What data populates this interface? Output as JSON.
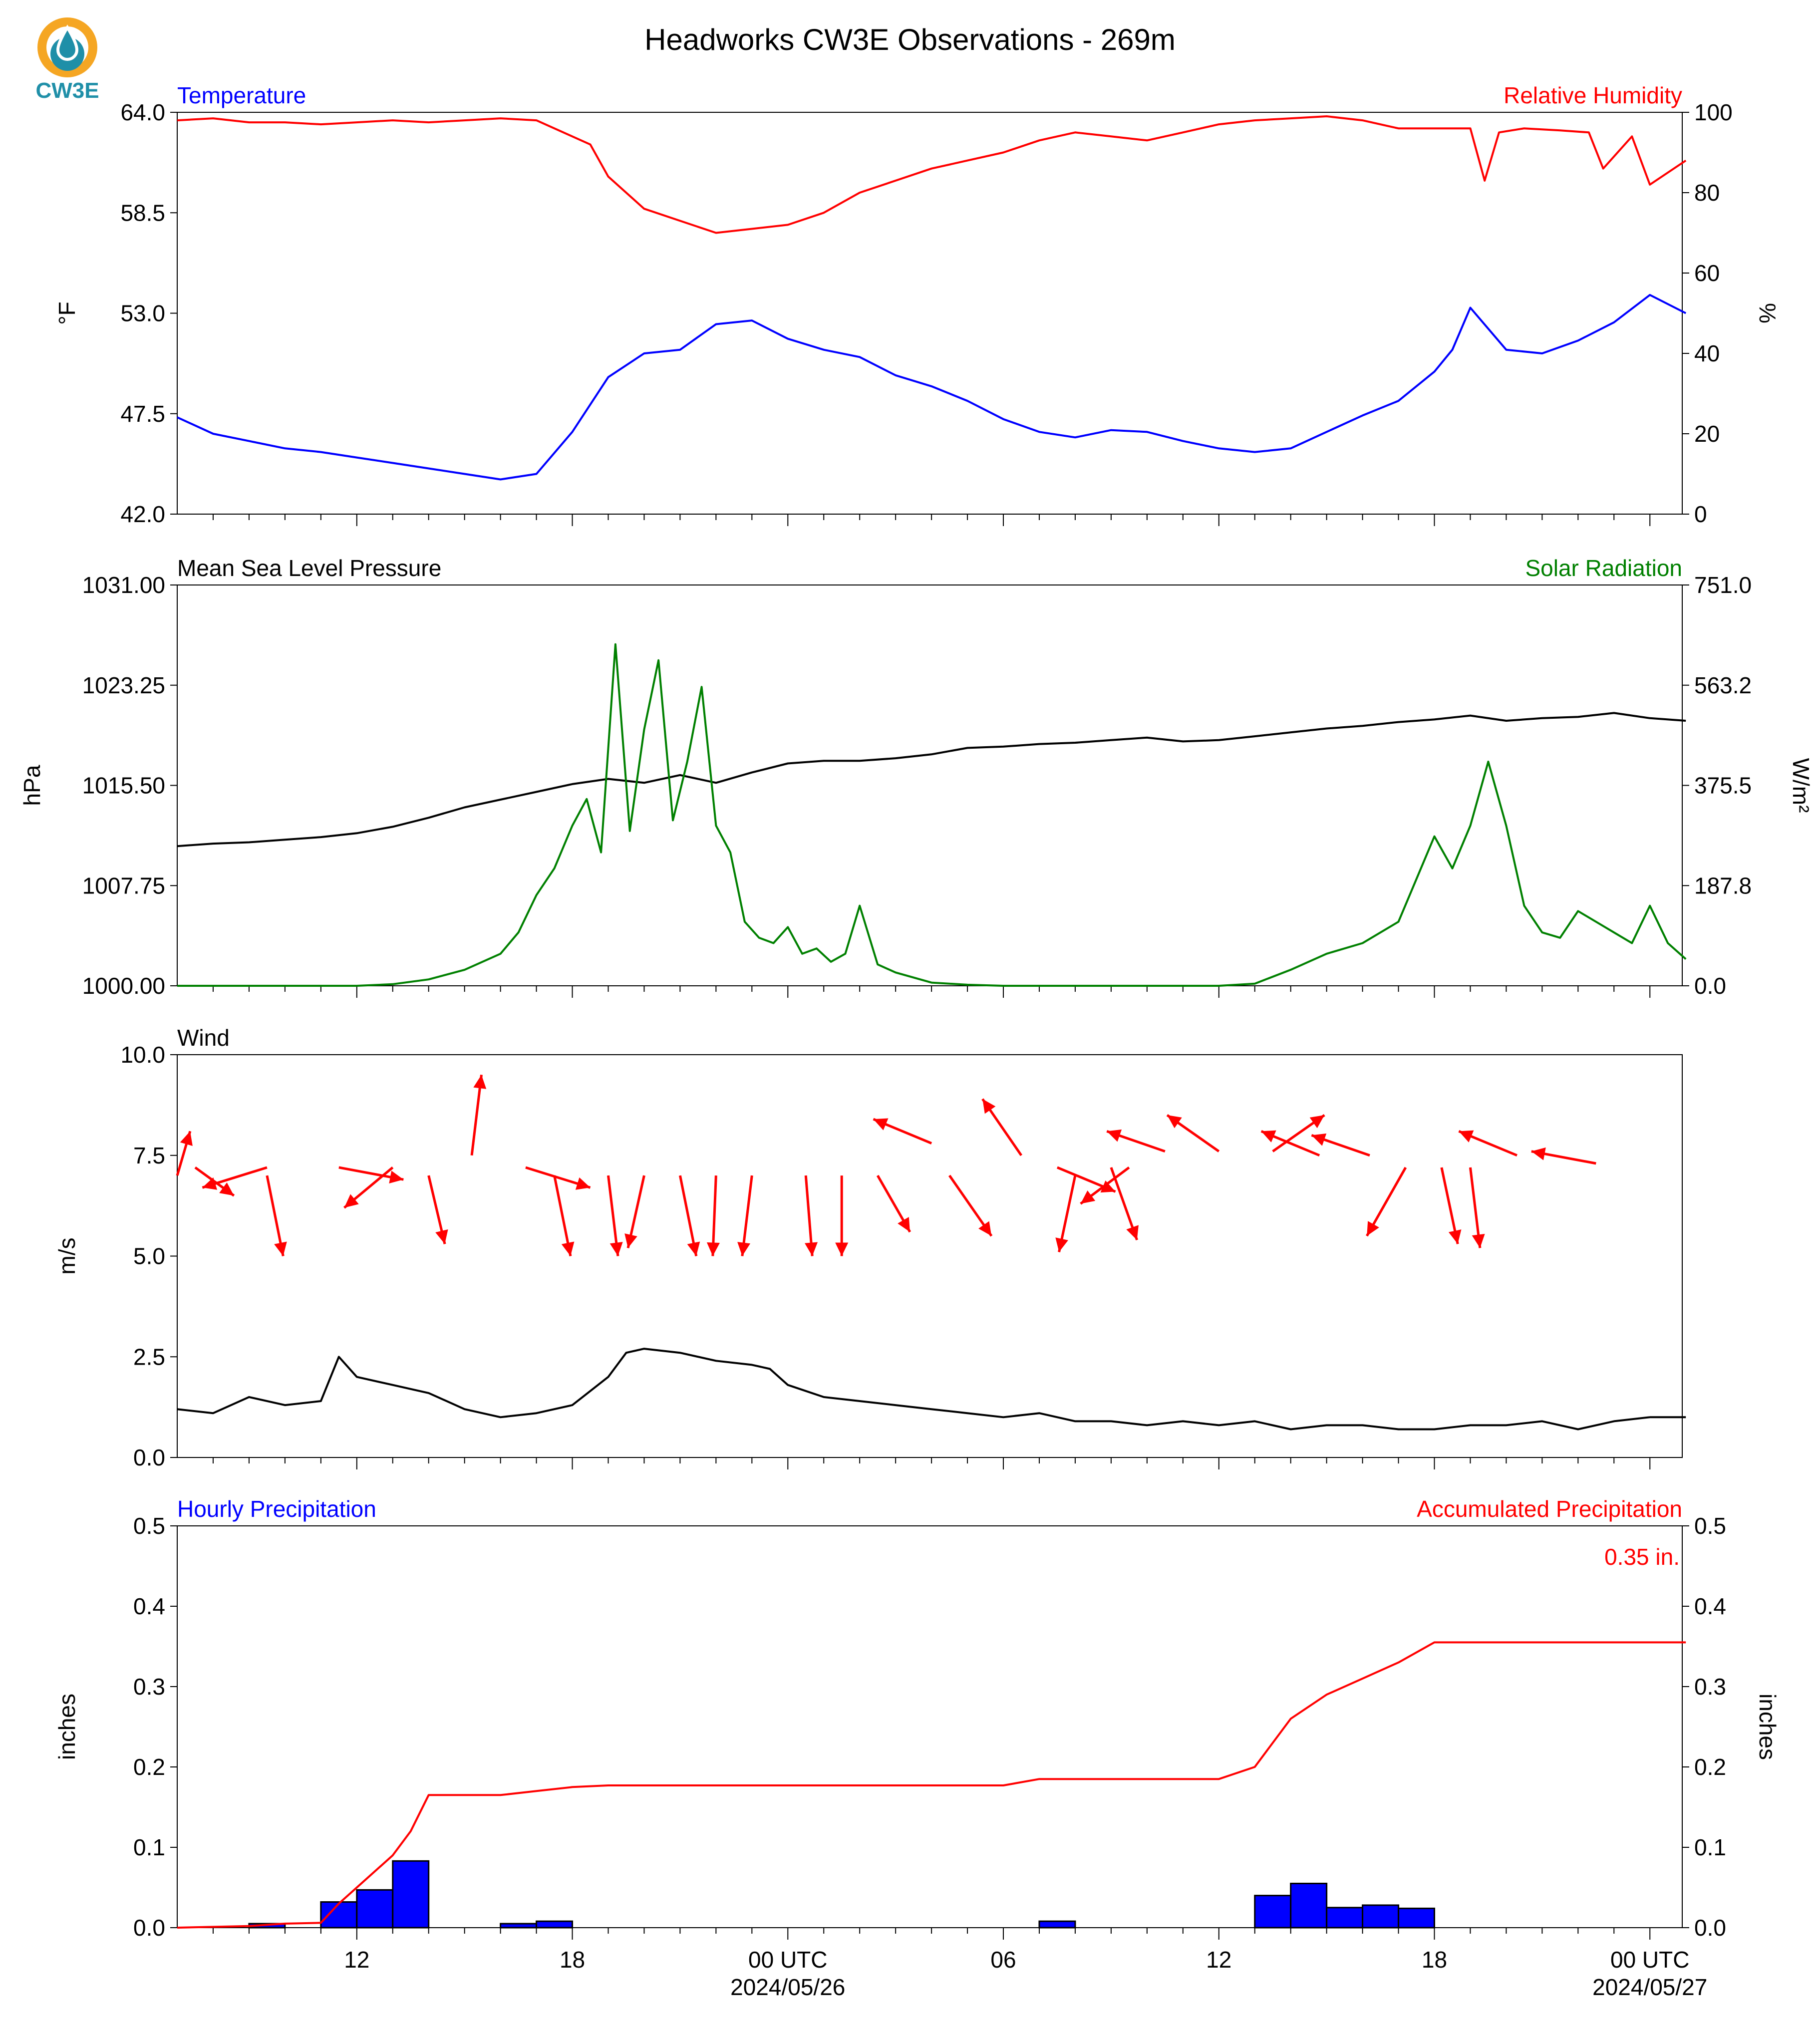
{
  "figure": {
    "title": "Headworks CW3E Observations - 269m",
    "logo_text": "CW3E",
    "accent_colors": {
      "blue": "#0000ff",
      "red": "#ff0000",
      "green": "#008000",
      "black": "#000000",
      "logo_orange": "#f5a623",
      "logo_teal": "#1f8fa8"
    }
  },
  "time_axis": {
    "start_hour": 7,
    "end_hour": 48.9,
    "major_ticks": [
      {
        "hour": 12,
        "label": "12",
        "sublabel": ""
      },
      {
        "hour": 18,
        "label": "18",
        "sublabel": ""
      },
      {
        "hour": 24,
        "label": "00 UTC",
        "sublabel": "2024/05/26"
      },
      {
        "hour": 30,
        "label": "06",
        "sublabel": ""
      },
      {
        "hour": 36,
        "label": "12",
        "sublabel": ""
      },
      {
        "hour": 42,
        "label": "18",
        "sublabel": ""
      },
      {
        "hour": 48,
        "label": "00 UTC",
        "sublabel": "2024/05/27"
      }
    ]
  },
  "chart_data": [
    {
      "type": "line",
      "name": "temperature_humidity",
      "left_title": "Temperature",
      "right_title": "Relative Humidity",
      "ylabel": "°F",
      "y2label": "%",
      "ylim": [
        42.0,
        64.0
      ],
      "y2lim": [
        0,
        100
      ],
      "yticks": [
        "42.0",
        "47.5",
        "53.0",
        "58.5",
        "64.0"
      ],
      "y2ticks": [
        "0",
        "20",
        "40",
        "60",
        "80",
        "100"
      ],
      "series": [
        {
          "name": "Temperature",
          "axis": "left",
          "color": "#0000ff",
          "x": [
            7,
            8,
            9,
            10,
            11,
            12,
            13,
            14,
            15,
            16,
            17,
            18,
            19,
            20,
            21,
            22,
            23,
            24,
            25,
            26,
            27,
            28,
            29,
            30,
            31,
            32,
            33,
            34,
            35,
            36,
            37,
            38,
            39,
            40,
            41,
            42,
            42.5,
            43,
            44,
            45,
            46,
            47,
            48,
            49
          ],
          "y": [
            47.3,
            46.4,
            46.0,
            45.6,
            45.4,
            45.1,
            44.8,
            44.5,
            44.2,
            43.9,
            44.2,
            46.5,
            49.5,
            50.8,
            51.0,
            52.4,
            52.6,
            51.6,
            51.0,
            50.6,
            49.6,
            49.0,
            48.2,
            47.2,
            46.5,
            46.2,
            46.6,
            46.5,
            46.0,
            45.6,
            45.4,
            45.6,
            46.5,
            47.4,
            48.2,
            49.8,
            51.0,
            53.3,
            51.0,
            50.8,
            51.5,
            52.5,
            54.0,
            53.0
          ]
        },
        {
          "name": "Relative Humidity",
          "axis": "right",
          "color": "#ff0000",
          "x": [
            7,
            8,
            9,
            10,
            11,
            12,
            13,
            14,
            15,
            16,
            17,
            18,
            18.5,
            19,
            20,
            21,
            22,
            23,
            24,
            25,
            26,
            27,
            28,
            29,
            30,
            31,
            32,
            33,
            34,
            35,
            36,
            37,
            38,
            39,
            40,
            41,
            42,
            43,
            43.4,
            43.8,
            44.5,
            45.5,
            46.3,
            46.7,
            47.5,
            48,
            49
          ],
          "y": [
            98,
            98.5,
            97.5,
            97.5,
            97,
            97.5,
            98,
            97.5,
            98,
            98.5,
            98,
            94,
            92,
            84,
            76,
            73,
            70,
            71,
            72,
            75,
            80,
            83,
            86,
            88,
            90,
            93,
            95,
            94,
            93,
            95,
            97,
            98,
            98.5,
            99,
            98,
            96,
            96,
            96,
            83,
            95,
            96,
            95.5,
            95,
            86,
            94,
            82,
            88
          ]
        }
      ]
    },
    {
      "type": "line",
      "name": "pressure_solar",
      "left_title": "Mean Sea Level Pressure",
      "right_title": "Solar Radiation",
      "ylabel": "hPa",
      "y2label": "W/m²",
      "ylim": [
        1000.0,
        1031.0
      ],
      "y2lim": [
        0.0,
        751.0
      ],
      "yticks": [
        "1000.00",
        "1007.75",
        "1015.50",
        "1023.25",
        "1031.00"
      ],
      "y2ticks": [
        "0.0",
        "187.8",
        "375.5",
        "563.2",
        "751.0"
      ],
      "series": [
        {
          "name": "Mean Sea Level Pressure",
          "axis": "left",
          "color": "#000000",
          "x": [
            7,
            8,
            9,
            10,
            11,
            12,
            13,
            14,
            15,
            16,
            17,
            18,
            19,
            20,
            21,
            22,
            23,
            24,
            25,
            26,
            27,
            28,
            29,
            30,
            31,
            32,
            33,
            34,
            35,
            36,
            37,
            38,
            39,
            40,
            41,
            42,
            43,
            44,
            45,
            46,
            47,
            48,
            49
          ],
          "y": [
            1010.8,
            1011.0,
            1011.1,
            1011.3,
            1011.5,
            1011.8,
            1012.3,
            1013.0,
            1013.8,
            1014.4,
            1015.0,
            1015.6,
            1016.0,
            1015.7,
            1016.3,
            1015.7,
            1016.5,
            1017.2,
            1017.4,
            1017.4,
            1017.6,
            1017.9,
            1018.4,
            1018.5,
            1018.7,
            1018.8,
            1019.0,
            1019.2,
            1018.9,
            1019.0,
            1019.3,
            1019.6,
            1019.9,
            1020.1,
            1020.4,
            1020.6,
            1020.9,
            1020.5,
            1020.7,
            1020.8,
            1021.1,
            1020.7,
            1020.5
          ]
        },
        {
          "name": "Solar Radiation",
          "axis": "right",
          "color": "#008000",
          "x": [
            7,
            9,
            11,
            12,
            13,
            14,
            15,
            16,
            16.5,
            17,
            17.5,
            18,
            18.4,
            18.8,
            19.2,
            19.6,
            20,
            20.4,
            20.8,
            21.2,
            21.6,
            22,
            22.4,
            22.8,
            23.2,
            23.6,
            24,
            24.4,
            24.8,
            25.2,
            25.6,
            26,
            26.5,
            27,
            28,
            29,
            30,
            31,
            32,
            33,
            34,
            35,
            36,
            37,
            38,
            39,
            40,
            41,
            41.5,
            42,
            42.5,
            43,
            43.5,
            44,
            44.5,
            45,
            45.5,
            46,
            46.5,
            47,
            47.5,
            48,
            48.5,
            49
          ],
          "y": [
            0,
            0,
            0,
            0,
            3,
            12,
            30,
            60,
            100,
            170,
            220,
            300,
            350,
            250,
            640,
            290,
            480,
            610,
            310,
            420,
            560,
            300,
            250,
            120,
            90,
            80,
            110,
            60,
            70,
            45,
            60,
            150,
            40,
            25,
            6,
            2,
            0,
            0,
            0,
            0,
            0,
            0,
            0,
            4,
            30,
            60,
            80,
            120,
            200,
            280,
            220,
            300,
            420,
            300,
            150,
            100,
            90,
            140,
            120,
            100,
            80,
            150,
            80,
            50
          ]
        }
      ]
    },
    {
      "type": "line",
      "name": "wind",
      "left_title": "Wind",
      "ylabel": "m/s",
      "ylim": [
        0.0,
        10.0
      ],
      "yticks": [
        "0.0",
        "2.5",
        "5.0",
        "7.5",
        "10.0"
      ],
      "series": [
        {
          "name": "Wind Speed",
          "axis": "left",
          "color": "#000000",
          "x": [
            7,
            8,
            9,
            10,
            11,
            11.5,
            12,
            13,
            14,
            15,
            16,
            17,
            18,
            19,
            19.5,
            20,
            21,
            22,
            23,
            23.5,
            24,
            25,
            26,
            27,
            28,
            29,
            30,
            31,
            32,
            33,
            34,
            35,
            36,
            37,
            38,
            39,
            40,
            41,
            42,
            43,
            44,
            45,
            46,
            47,
            48,
            49
          ],
          "y": [
            1.2,
            1.1,
            1.5,
            1.3,
            1.4,
            2.5,
            2.0,
            1.8,
            1.6,
            1.2,
            1.0,
            1.1,
            1.3,
            2.0,
            2.6,
            2.7,
            2.6,
            2.4,
            2.3,
            2.2,
            1.8,
            1.5,
            1.4,
            1.3,
            1.2,
            1.1,
            1.0,
            1.1,
            0.9,
            0.9,
            0.8,
            0.9,
            0.8,
            0.9,
            0.7,
            0.8,
            0.8,
            0.7,
            0.7,
            0.8,
            0.8,
            0.9,
            0.7,
            0.9,
            1.0,
            1.0
          ]
        },
        {
          "name": "Wind Vectors",
          "type": "vectors",
          "color": "#ff0000",
          "points": [
            {
              "x": 7.0,
              "y": 7.0,
              "dx": 0.4,
              "dy": 1.1
            },
            {
              "x": 7.5,
              "y": 7.2,
              "dx": 1.2,
              "dy": -0.7
            },
            {
              "x": 9.5,
              "y": 7.2,
              "dx": -2.0,
              "dy": -0.5
            },
            {
              "x": 9.5,
              "y": 7.0,
              "dx": 0.5,
              "dy": -2.0
            },
            {
              "x": 11.5,
              "y": 7.2,
              "dx": 2.0,
              "dy": -0.3
            },
            {
              "x": 13.0,
              "y": 7.2,
              "dx": -1.5,
              "dy": -1.0
            },
            {
              "x": 14.0,
              "y": 7.0,
              "dx": 0.5,
              "dy": -1.7
            },
            {
              "x": 15.2,
              "y": 7.5,
              "dx": 0.3,
              "dy": 2.0
            },
            {
              "x": 16.7,
              "y": 7.2,
              "dx": 2.0,
              "dy": -0.5
            },
            {
              "x": 17.5,
              "y": 7.0,
              "dx": 0.5,
              "dy": -2.0
            },
            {
              "x": 19.0,
              "y": 7.0,
              "dx": 0.3,
              "dy": -2.0
            },
            {
              "x": 20.0,
              "y": 7.0,
              "dx": -0.5,
              "dy": -1.8
            },
            {
              "x": 21.0,
              "y": 7.0,
              "dx": 0.5,
              "dy": -2.0
            },
            {
              "x": 22.0,
              "y": 7.0,
              "dx": -0.1,
              "dy": -2.0
            },
            {
              "x": 23.0,
              "y": 7.0,
              "dx": -0.3,
              "dy": -2.0
            },
            {
              "x": 24.5,
              "y": 7.0,
              "dx": 0.2,
              "dy": -2.0
            },
            {
              "x": 25.5,
              "y": 7.0,
              "dx": 0.0,
              "dy": -2.0
            },
            {
              "x": 26.5,
              "y": 7.0,
              "dx": 1.0,
              "dy": -1.4
            },
            {
              "x": 28.0,
              "y": 7.8,
              "dx": -1.8,
              "dy": 0.6
            },
            {
              "x": 28.5,
              "y": 7.0,
              "dx": 1.3,
              "dy": -1.5
            },
            {
              "x": 30.5,
              "y": 7.5,
              "dx": -1.2,
              "dy": 1.4
            },
            {
              "x": 31.5,
              "y": 7.2,
              "dx": 1.8,
              "dy": -0.6
            },
            {
              "x": 32.0,
              "y": 7.0,
              "dx": -0.5,
              "dy": -1.9
            },
            {
              "x": 33.5,
              "y": 7.2,
              "dx": -1.5,
              "dy": -0.9
            },
            {
              "x": 33.0,
              "y": 7.2,
              "dx": 0.8,
              "dy": -1.8
            },
            {
              "x": 34.5,
              "y": 7.6,
              "dx": -1.8,
              "dy": 0.5
            },
            {
              "x": 36.0,
              "y": 7.6,
              "dx": -1.6,
              "dy": 0.9
            },
            {
              "x": 37.5,
              "y": 7.6,
              "dx": 1.6,
              "dy": 0.9
            },
            {
              "x": 38.8,
              "y": 7.5,
              "dx": -1.8,
              "dy": 0.6
            },
            {
              "x": 40.2,
              "y": 7.5,
              "dx": -1.8,
              "dy": 0.5
            },
            {
              "x": 41.2,
              "y": 7.2,
              "dx": -1.2,
              "dy": -1.7
            },
            {
              "x": 42.2,
              "y": 7.2,
              "dx": 0.5,
              "dy": -1.9
            },
            {
              "x": 43.0,
              "y": 7.2,
              "dx": 0.3,
              "dy": -2.0
            },
            {
              "x": 44.3,
              "y": 7.5,
              "dx": -1.8,
              "dy": 0.6
            },
            {
              "x": 46.5,
              "y": 7.3,
              "dx": -2.0,
              "dy": 0.3
            }
          ]
        }
      ]
    },
    {
      "type": "bar",
      "name": "precipitation",
      "left_title": "Hourly Precipitation",
      "right_title": "Accumulated Precipitation",
      "ylabel": "inches",
      "y2label": "inches",
      "ylim": [
        0.0,
        0.5
      ],
      "y2lim": [
        0.0,
        0.5
      ],
      "yticks": [
        "0.0",
        "0.1",
        "0.2",
        "0.3",
        "0.4",
        "0.5"
      ],
      "y2ticks": [
        "0.0",
        "0.1",
        "0.2",
        "0.3",
        "0.4",
        "0.5"
      ],
      "annotation": "0.35 in.",
      "series": [
        {
          "name": "Hourly Precipitation",
          "axis": "left",
          "color": "#0000ff",
          "x": [
            9,
            11,
            12,
            13,
            16,
            17,
            31,
            37,
            38,
            39,
            40,
            41
          ],
          "values": [
            0.005,
            0.032,
            0.047,
            0.083,
            0.005,
            0.008,
            0.008,
            0.04,
            0.055,
            0.025,
            0.028,
            0.024
          ]
        },
        {
          "name": "Accumulated Precipitation",
          "axis": "right",
          "color": "#ff0000",
          "x": [
            7,
            9,
            10,
            11,
            11.5,
            12,
            12.5,
            13,
            13.5,
            14,
            16,
            17,
            18,
            19,
            30,
            31,
            32,
            36,
            37,
            37.5,
            38,
            39,
            40,
            41,
            42,
            49
          ],
          "y": [
            0.0,
            0.002,
            0.005,
            0.006,
            0.03,
            0.05,
            0.07,
            0.09,
            0.12,
            0.165,
            0.165,
            0.17,
            0.175,
            0.177,
            0.177,
            0.185,
            0.185,
            0.185,
            0.2,
            0.23,
            0.26,
            0.29,
            0.31,
            0.33,
            0.355,
            0.355
          ]
        }
      ]
    }
  ]
}
